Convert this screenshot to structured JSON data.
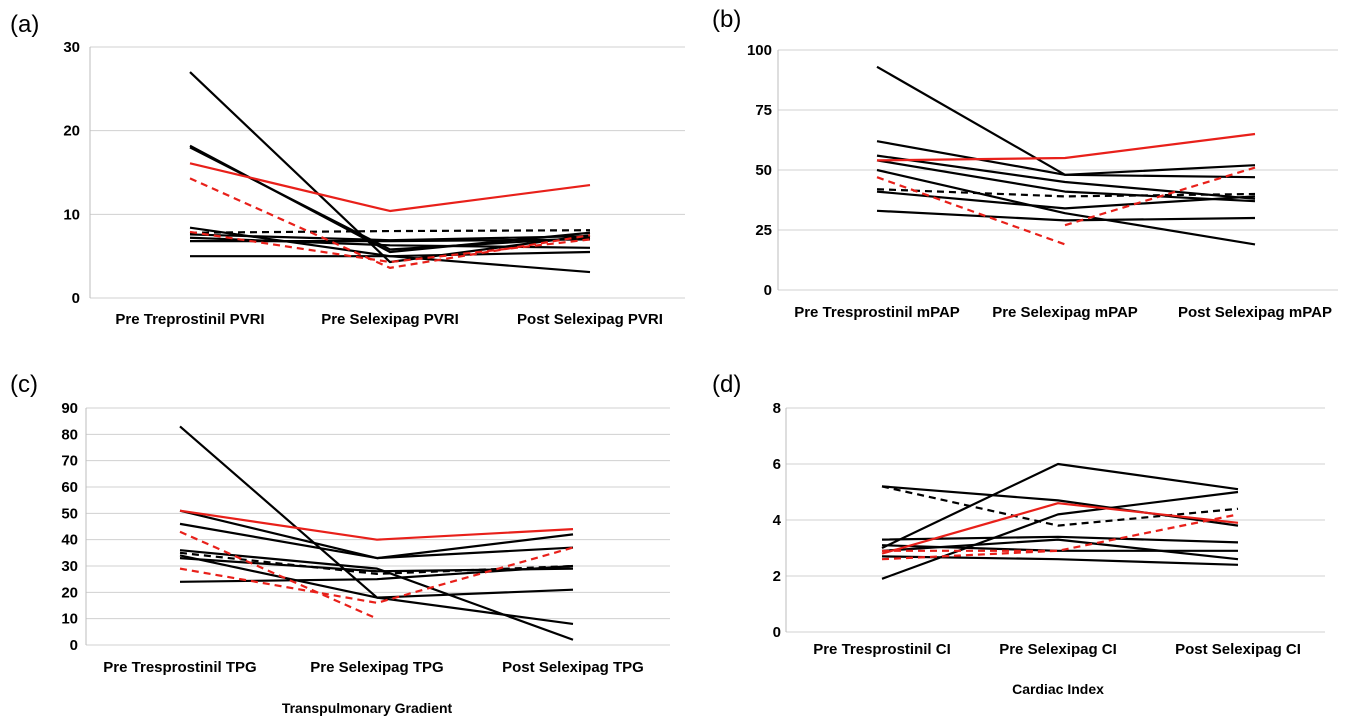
{
  "chart_data": [
    {
      "panel": "(a)",
      "type": "line",
      "categories": [
        "Pre Treprostinil PVRI",
        "Pre Selexipag PVRI",
        "Post Selexipag PVRI"
      ],
      "xlabel": "",
      "ylabel": "",
      "ylim": [
        0,
        30
      ],
      "yticks": [
        0,
        10,
        20,
        30
      ],
      "grid": true,
      "series": [
        {
          "color": "#000000",
          "style": "solid",
          "values": [
            27,
            4.3,
            7.5
          ]
        },
        {
          "color": "#000000",
          "style": "solid",
          "values": [
            18.2,
            5.5,
            7.8
          ]
        },
        {
          "color": "#000000",
          "style": "solid",
          "values": [
            18,
            5.8,
            7.2
          ]
        },
        {
          "color": "#000000",
          "style": "solid",
          "values": [
            8.4,
            5.0,
            3.1
          ]
        },
        {
          "color": "#000000",
          "style": "solid",
          "values": [
            7.6,
            6.9,
            7.4
          ]
        },
        {
          "color": "#000000",
          "style": "solid",
          "values": [
            7.2,
            6.3,
            6.0
          ]
        },
        {
          "color": "#000000",
          "style": "solid",
          "values": [
            6.8,
            6.8,
            7.0
          ]
        },
        {
          "color": "#000000",
          "style": "solid",
          "values": [
            5.0,
            5.0,
            5.5
          ]
        },
        {
          "color": "#000000",
          "style": "dashed",
          "values": [
            7.8,
            8.0,
            8.1
          ]
        },
        {
          "color": "#e8201a",
          "style": "solid",
          "values": [
            16.1,
            10.4,
            13.5
          ]
        },
        {
          "color": "#e8201a",
          "style": "dashed",
          "values": [
            14.3,
            3.6,
            7.5
          ]
        },
        {
          "color": "#e8201a",
          "style": "dashed",
          "values": [
            7.9,
            4.3,
            7.0
          ]
        }
      ]
    },
    {
      "panel": "(b)",
      "type": "line",
      "categories": [
        "Pre Tresprostinil mPAP",
        "Pre Selexipag mPAP",
        "Post Selexipag mPAP"
      ],
      "xlabel": "",
      "ylabel": "",
      "ylim": [
        0,
        100
      ],
      "yticks": [
        0,
        25,
        50,
        75,
        100
      ],
      "grid": true,
      "series": [
        {
          "color": "#000000",
          "style": "solid",
          "values": [
            93,
            48,
            47
          ]
        },
        {
          "color": "#000000",
          "style": "solid",
          "values": [
            62,
            48,
            52
          ]
        },
        {
          "color": "#000000",
          "style": "solid",
          "values": [
            56,
            45,
            38
          ]
        },
        {
          "color": "#000000",
          "style": "solid",
          "values": [
            54,
            41,
            37
          ]
        },
        {
          "color": "#000000",
          "style": "solid",
          "values": [
            50,
            32,
            19
          ]
        },
        {
          "color": "#000000",
          "style": "solid",
          "values": [
            41,
            34,
            39
          ]
        },
        {
          "color": "#000000",
          "style": "solid",
          "values": [
            33,
            29,
            30
          ]
        },
        {
          "color": "#000000",
          "style": "dashed",
          "values": [
            42,
            39,
            40
          ]
        },
        {
          "color": "#e8201a",
          "style": "solid",
          "values": [
            54,
            55,
            65
          ]
        },
        {
          "color": "#e8201a",
          "style": "dashed",
          "values": [
            47,
            19,
            null
          ]
        },
        {
          "color": "#e8201a",
          "style": "dashed",
          "values": [
            null,
            27,
            51
          ]
        }
      ]
    },
    {
      "panel": "(c)",
      "type": "line",
      "categories": [
        "Pre Tresprostinil TPG",
        "Pre Selexipag TPG",
        "Post Selexipag TPG"
      ],
      "xlabel": "Transpulmonary Gradient",
      "ylabel": "",
      "ylim": [
        0,
        90
      ],
      "yticks": [
        0,
        10,
        20,
        30,
        40,
        50,
        60,
        70,
        80,
        90
      ],
      "grid": true,
      "series": [
        {
          "color": "#000000",
          "style": "solid",
          "values": [
            83,
            18,
            21
          ]
        },
        {
          "color": "#000000",
          "style": "solid",
          "values": [
            51,
            33,
            42
          ]
        },
        {
          "color": "#000000",
          "style": "solid",
          "values": [
            46,
            33,
            37
          ]
        },
        {
          "color": "#000000",
          "style": "solid",
          "values": [
            36,
            29,
            2
          ]
        },
        {
          "color": "#000000",
          "style": "solid",
          "values": [
            34,
            18,
            8
          ]
        },
        {
          "color": "#000000",
          "style": "solid",
          "values": [
            33,
            28,
            29
          ]
        },
        {
          "color": "#000000",
          "style": "solid",
          "values": [
            24,
            25,
            30
          ]
        },
        {
          "color": "#000000",
          "style": "dashed",
          "values": [
            35,
            27,
            30
          ]
        },
        {
          "color": "#e8201a",
          "style": "solid",
          "values": [
            51,
            40,
            44
          ]
        },
        {
          "color": "#e8201a",
          "style": "dashed",
          "values": [
            43,
            10,
            null
          ]
        },
        {
          "color": "#e8201a",
          "style": "dashed",
          "values": [
            29,
            16,
            37
          ]
        }
      ]
    },
    {
      "panel": "(d)",
      "type": "line",
      "categories": [
        "Pre Tresprostinil CI",
        "Pre Selexipag CI",
        "Post Selexipag CI"
      ],
      "xlabel": "Cardiac Index",
      "ylabel": "",
      "ylim": [
        0,
        8
      ],
      "yticks": [
        0,
        2,
        4,
        6,
        8
      ],
      "grid": true,
      "series": [
        {
          "color": "#000000",
          "style": "solid",
          "values": [
            3.0,
            6.0,
            5.1
          ]
        },
        {
          "color": "#000000",
          "style": "solid",
          "values": [
            5.2,
            4.7,
            3.8
          ]
        },
        {
          "color": "#000000",
          "style": "solid",
          "values": [
            1.9,
            4.2,
            5.0
          ]
        },
        {
          "color": "#000000",
          "style": "solid",
          "values": [
            3.3,
            3.4,
            3.2
          ]
        },
        {
          "color": "#000000",
          "style": "solid",
          "values": [
            2.9,
            3.3,
            2.6
          ]
        },
        {
          "color": "#000000",
          "style": "solid",
          "values": [
            3.1,
            2.9,
            2.9
          ]
        },
        {
          "color": "#000000",
          "style": "solid",
          "values": [
            2.7,
            2.6,
            2.4
          ]
        },
        {
          "color": "#000000",
          "style": "dashed",
          "values": [
            5.2,
            3.8,
            4.4
          ]
        },
        {
          "color": "#e8201a",
          "style": "solid",
          "values": [
            2.8,
            4.6,
            3.9
          ]
        },
        {
          "color": "#e8201a",
          "style": "dashed",
          "values": [
            2.6,
            2.9,
            4.2
          ]
        },
        {
          "color": "#e8201a",
          "style": "dashed",
          "values": [
            2.9,
            2.9,
            null
          ]
        }
      ]
    }
  ]
}
